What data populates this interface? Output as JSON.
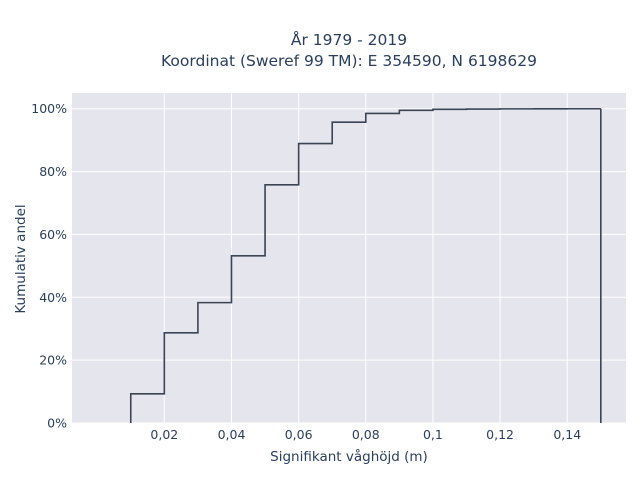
{
  "chart_data": {
    "type": "line",
    "subtype": "step-ecdf",
    "title_lines": [
      "År 1979 - 2019",
      "Koordinat (Sweref 99 TM): E 354590, N 6198629"
    ],
    "xlabel": "Signifikant våghöjd (m)",
    "ylabel": "Kumulativ andel",
    "xlim": [
      -0.0075,
      0.1575
    ],
    "ylim": [
      0,
      1.05
    ],
    "x_ticks": [
      {
        "value": 0.02,
        "label": "0,02"
      },
      {
        "value": 0.04,
        "label": "0,04"
      },
      {
        "value": 0.06,
        "label": "0,06"
      },
      {
        "value": 0.08,
        "label": "0,08"
      },
      {
        "value": 0.1,
        "label": "0,1"
      },
      {
        "value": 0.12,
        "label": "0,12"
      },
      {
        "value": 0.14,
        "label": "0,14"
      }
    ],
    "y_ticks": [
      {
        "value": 0,
        "label": "0%"
      },
      {
        "value": 0.2,
        "label": "20%"
      },
      {
        "value": 0.4,
        "label": "40%"
      },
      {
        "value": 0.6,
        "label": "60%"
      },
      {
        "value": 0.8,
        "label": "80%"
      },
      {
        "value": 1.0,
        "label": "100%"
      }
    ],
    "grid": true,
    "background": "#e5e5ee",
    "grid_color": "#ffffff",
    "line_color": "#3b4452",
    "series": [
      {
        "x": [
          0.01,
          0.02,
          0.03,
          0.04,
          0.05,
          0.06,
          0.07,
          0.08,
          0.09,
          0.1,
          0.11,
          0.12,
          0.13,
          0.14,
          0.15
        ],
        "y": [
          0.093,
          0.287,
          0.383,
          0.532,
          0.758,
          0.889,
          0.957,
          0.985,
          0.995,
          0.998,
          0.999,
          0.9995,
          0.9998,
          0.9999,
          1.0
        ]
      }
    ]
  }
}
